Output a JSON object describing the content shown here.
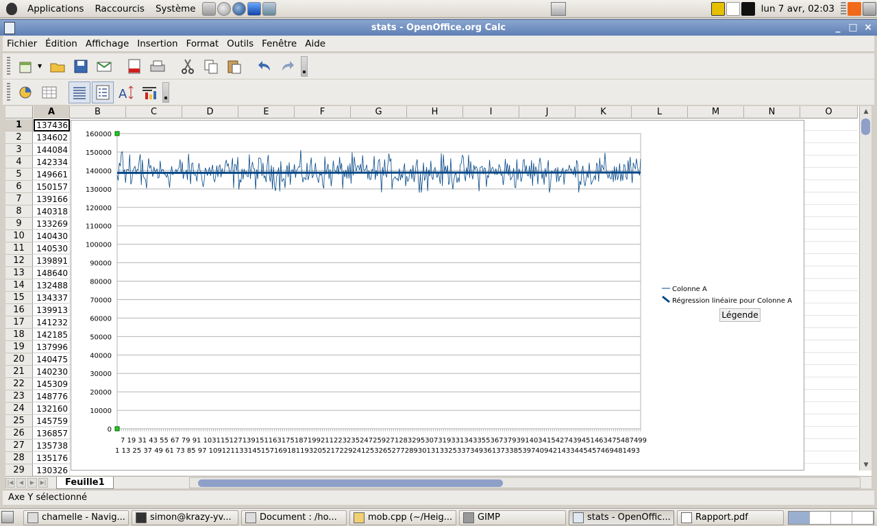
{
  "top_panel": {
    "menus": [
      "Applications",
      "Raccourcis",
      "Système"
    ],
    "clock": "lun  7 avr, 02:03"
  },
  "window": {
    "title": "stats - OpenOffice.org Calc",
    "buttons": [
      "_",
      "□",
      "×"
    ]
  },
  "menubar": {
    "items": [
      "Fichier",
      "Édition",
      "Affichage",
      "Insertion",
      "Format",
      "Outils",
      "Fenêtre",
      "Aide"
    ]
  },
  "toolbar1": {
    "icons": [
      "new-document-icon",
      "open-folder-icon",
      "save-icon",
      "email-icon",
      "export-pdf-icon",
      "print-icon",
      "cut-icon",
      "copy-icon",
      "paste-icon",
      "undo-icon",
      "redo-icon"
    ]
  },
  "toolbar2": {
    "icons": [
      "chart-type-icon",
      "data-table-icon",
      "gridlines-icon",
      "legend-icon",
      "scale-text-icon",
      "autoformat-icon"
    ]
  },
  "sheet": {
    "columns": [
      "A",
      "B",
      "C",
      "D",
      "E",
      "F",
      "G",
      "H",
      "I",
      "J",
      "K",
      "L",
      "M",
      "N",
      "O"
    ],
    "active_column": "A",
    "rows": [
      {
        "n": "1",
        "a": "137436"
      },
      {
        "n": "2",
        "a": "134602"
      },
      {
        "n": "3",
        "a": "144084"
      },
      {
        "n": "4",
        "a": "142334"
      },
      {
        "n": "5",
        "a": "149661"
      },
      {
        "n": "6",
        "a": "150157"
      },
      {
        "n": "7",
        "a": "139166"
      },
      {
        "n": "8",
        "a": "140318"
      },
      {
        "n": "9",
        "a": "133269"
      },
      {
        "n": "10",
        "a": "140430"
      },
      {
        "n": "11",
        "a": "140530"
      },
      {
        "n": "12",
        "a": "139891"
      },
      {
        "n": "13",
        "a": "148640"
      },
      {
        "n": "14",
        "a": "132488"
      },
      {
        "n": "15",
        "a": "134337"
      },
      {
        "n": "16",
        "a": "139913"
      },
      {
        "n": "17",
        "a": "141232"
      },
      {
        "n": "18",
        "a": "142185"
      },
      {
        "n": "19",
        "a": "137996"
      },
      {
        "n": "20",
        "a": "140475"
      },
      {
        "n": "21",
        "a": "140230"
      },
      {
        "n": "22",
        "a": "145309"
      },
      {
        "n": "23",
        "a": "148776"
      },
      {
        "n": "24",
        "a": "132160"
      },
      {
        "n": "25",
        "a": "145759"
      },
      {
        "n": "26",
        "a": "136857"
      },
      {
        "n": "27",
        "a": "135738"
      },
      {
        "n": "28",
        "a": "135176"
      },
      {
        "n": "29",
        "a": "130326"
      }
    ],
    "tab_name": "Feuille1"
  },
  "chart_data": {
    "type": "line",
    "title": "",
    "xlabel": "",
    "ylabel": "",
    "ylim": [
      0,
      160000
    ],
    "yticks": [
      0,
      10000,
      20000,
      30000,
      40000,
      50000,
      60000,
      70000,
      80000,
      90000,
      100000,
      110000,
      120000,
      130000,
      140000,
      150000,
      160000
    ],
    "xlim": [
      1,
      500
    ],
    "x_tick_labels_upper": "7  19  31  43  55  67  79  91  103115127139151163175187199211223235247259271283295307319331343355367379391403415427439451463475487499",
    "x_tick_labels_lower": "1  13  25  37  49  61  73  85  97  109121133145157169181193205217229241253265277289301313325337349361373385397409421433445457469481493",
    "series": [
      {
        "name": "Colonne A",
        "style": "line",
        "color": "#004586",
        "n_points": 500,
        "mean": 139000,
        "range": [
          128000,
          153000
        ],
        "first_values": [
          137436,
          134602,
          144084,
          142334,
          149661,
          150157,
          139166,
          140318,
          133269,
          140430,
          140530,
          139891,
          148640,
          132488,
          134337,
          139913,
          141232,
          142185,
          137996,
          140475,
          140230,
          145309,
          148776,
          132160,
          145759,
          136857,
          135738,
          135176,
          130326
        ]
      },
      {
        "name": "Régression linéaire pour Colonne A",
        "style": "trendline",
        "color": "#004586",
        "y_start": 138700,
        "y_end": 138900
      }
    ],
    "legend": {
      "position": "right",
      "button_label": "Légende"
    },
    "grid": true
  },
  "status": {
    "text": "Axe Y sélectionné"
  },
  "taskbar": {
    "tasks": [
      {
        "label": "chamelle - Navig..."
      },
      {
        "label": "simon@krazy-yv..."
      },
      {
        "label": "Document : /ho..."
      },
      {
        "label": "mob.cpp (~/Heig..."
      },
      {
        "label": "GIMP"
      },
      {
        "label": "stats - OpenOffic..."
      },
      {
        "label": "Rapport.pdf"
      }
    ]
  }
}
